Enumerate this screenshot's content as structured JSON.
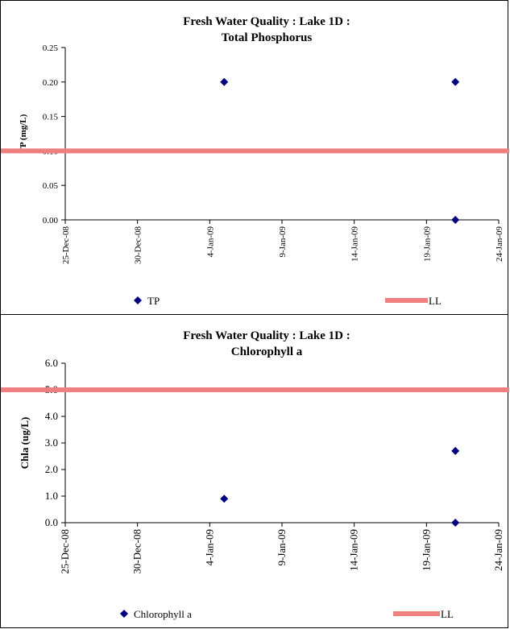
{
  "chart_data": [
    {
      "type": "scatter",
      "title": [
        "Fresh Water Quality : Lake 1D :",
        "Total Phosphorus"
      ],
      "ylabel": "TP (mg/L)",
      "xlabel": "",
      "ylim": [
        0,
        0.25
      ],
      "yticks": [
        "0.00",
        "0.05",
        "0.10",
        "0.15",
        "0.20",
        "0.25"
      ],
      "xticks": [
        "25-Dec-08",
        "30-Dec-08",
        "4-Jan-09",
        "9-Jan-09",
        "14-Jan-09",
        "19-Jan-09",
        "24-Jan-09"
      ],
      "xlim": [
        "2008-12-25",
        "2009-01-24"
      ],
      "grid": false,
      "legend_position": "bottom",
      "series": [
        {
          "name": "TP",
          "marker": "diamond",
          "color": "#000080",
          "points": [
            {
              "x": "2009-01-05",
              "y": 0.2
            },
            {
              "x": "2009-01-21",
              "y": 0.2
            },
            {
              "x": "2009-01-21",
              "y": 0.0
            }
          ]
        },
        {
          "name": "LL",
          "kind": "hline",
          "color": "#f08080",
          "y": 0.1
        }
      ]
    },
    {
      "type": "scatter",
      "title": [
        "Fresh Water Quality : Lake 1D :",
        "Chlorophyll a"
      ],
      "ylabel": "Chla (ug/L)",
      "xlabel": "",
      "ylim": [
        0,
        6
      ],
      "yticks": [
        "0.0",
        "1.0",
        "2.0",
        "3.0",
        "4.0",
        "5.0",
        "6.0"
      ],
      "xticks": [
        "25-Dec-08",
        "30-Dec-08",
        "4-Jan-09",
        "9-Jan-09",
        "14-Jan-09",
        "19-Jan-09",
        "24-Jan-09"
      ],
      "xlim": [
        "2008-12-25",
        "2009-01-24"
      ],
      "grid": false,
      "legend_position": "bottom",
      "series": [
        {
          "name": "Chlorophyll a",
          "marker": "diamond",
          "color": "#000080",
          "points": [
            {
              "x": "2009-01-05",
              "y": 0.9
            },
            {
              "x": "2009-01-21",
              "y": 2.7
            },
            {
              "x": "2009-01-21",
              "y": 0.0
            }
          ]
        },
        {
          "name": "LL",
          "kind": "hline",
          "color": "#f08080",
          "y": 5.0
        }
      ]
    }
  ]
}
